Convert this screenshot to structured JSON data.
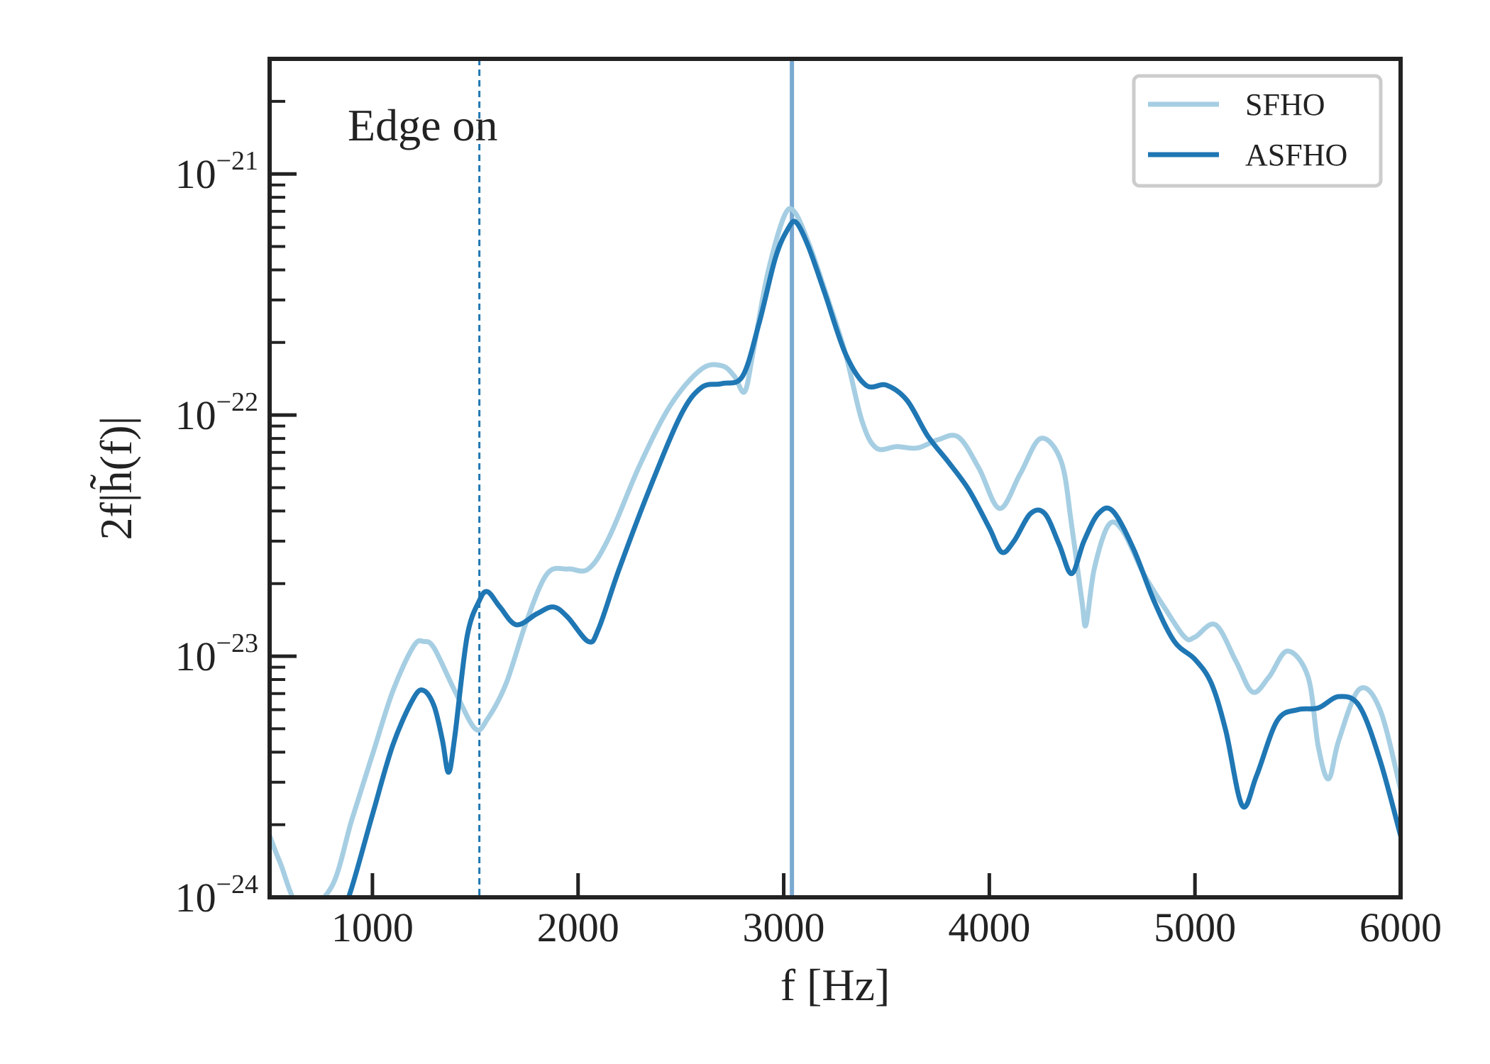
{
  "chart_data": {
    "type": "line",
    "annotation": "Edge on",
    "xlabel": "f [Hz]",
    "ylabel": "2f|h̃(f)|",
    "xlim": [
      500,
      6000
    ],
    "ylim": [
      1e-24,
      3e-21
    ],
    "yscale": "log",
    "xticks": [
      1000,
      2000,
      3000,
      4000,
      5000,
      6000
    ],
    "yticks": [
      {
        "value": 1e-24,
        "base": "10",
        "exp": "−24"
      },
      {
        "value": 1e-23,
        "base": "10",
        "exp": "−23"
      },
      {
        "value": 1e-22,
        "base": "10",
        "exp": "−22"
      },
      {
        "value": 1e-21,
        "base": "10",
        "exp": "−21"
      }
    ],
    "legend_position": "top-right",
    "vlines": [
      {
        "x": 1520,
        "style": "dashed",
        "color": "#1f77b4"
      },
      {
        "x": 3040,
        "style": "solid",
        "color": "#7aa9d1"
      }
    ],
    "series": [
      {
        "name": "SFHO",
        "color": "#a6cee3",
        "points": [
          [
            500,
            1.8e-24
          ],
          [
            550,
            1.4e-24
          ],
          [
            650,
            9e-25
          ],
          [
            800,
            1.1e-24
          ],
          [
            900,
            2.1e-24
          ],
          [
            1000,
            3.9e-24
          ],
          [
            1100,
            7.2e-24
          ],
          [
            1200,
            1.1e-23
          ],
          [
            1250,
            1.15e-23
          ],
          [
            1300,
            1.08e-23
          ],
          [
            1400,
            7.2e-24
          ],
          [
            1500,
            5e-24
          ],
          [
            1560,
            5.5e-24
          ],
          [
            1650,
            7.7e-24
          ],
          [
            1750,
            1.4e-23
          ],
          [
            1850,
            2.2e-23
          ],
          [
            1950,
            2.3e-23
          ],
          [
            2050,
            2.3e-23
          ],
          [
            2150,
            3.1e-23
          ],
          [
            2300,
            6.2e-23
          ],
          [
            2450,
            1.1e-22
          ],
          [
            2600,
            1.55e-22
          ],
          [
            2700,
            1.6e-22
          ],
          [
            2760,
            1.45e-22
          ],
          [
            2810,
            1.25e-22
          ],
          [
            2850,
            1.8e-22
          ],
          [
            2920,
            3.8e-22
          ],
          [
            3000,
            6.6e-22
          ],
          [
            3050,
            7e-22
          ],
          [
            3120,
            5.2e-22
          ],
          [
            3200,
            3.3e-22
          ],
          [
            3300,
            1.8e-22
          ],
          [
            3380,
            9.5e-23
          ],
          [
            3450,
            7.3e-23
          ],
          [
            3550,
            7.4e-23
          ],
          [
            3650,
            7.3e-23
          ],
          [
            3750,
            7.9e-23
          ],
          [
            3850,
            8.1e-23
          ],
          [
            3950,
            6e-23
          ],
          [
            4050,
            4.1e-23
          ],
          [
            4150,
            5.7e-23
          ],
          [
            4250,
            8e-23
          ],
          [
            4350,
            6.4e-23
          ],
          [
            4400,
            3.5e-23
          ],
          [
            4450,
            1.7e-23
          ],
          [
            4470,
            1.35e-23
          ],
          [
            4510,
            2.3e-23
          ],
          [
            4580,
            3.5e-23
          ],
          [
            4650,
            3.3e-23
          ],
          [
            4750,
            2.2e-23
          ],
          [
            4850,
            1.6e-23
          ],
          [
            4950,
            1.2e-23
          ],
          [
            5000,
            1.2e-23
          ],
          [
            5100,
            1.35e-23
          ],
          [
            5200,
            9.5e-24
          ],
          [
            5280,
            7.1e-24
          ],
          [
            5360,
            8.2e-24
          ],
          [
            5450,
            1.05e-23
          ],
          [
            5550,
            8.2e-24
          ],
          [
            5600,
            4.2e-24
          ],
          [
            5650,
            3.1e-24
          ],
          [
            5700,
            4.5e-24
          ],
          [
            5800,
            7.3e-24
          ],
          [
            5900,
            6e-24
          ],
          [
            6000,
            2.8e-24
          ]
        ]
      },
      {
        "name": "ASFHO",
        "color": "#1f77b4",
        "points": [
          [
            820,
            7e-25
          ],
          [
            900,
            1.1e-24
          ],
          [
            1000,
            2.2e-24
          ],
          [
            1100,
            4.3e-24
          ],
          [
            1200,
            6.7e-24
          ],
          [
            1250,
            7.2e-24
          ],
          [
            1300,
            6.2e-24
          ],
          [
            1340,
            4.5e-24
          ],
          [
            1370,
            3.3e-24
          ],
          [
            1400,
            4.6e-24
          ],
          [
            1460,
            1.2e-23
          ],
          [
            1520,
            1.7e-23
          ],
          [
            1560,
            1.85e-23
          ],
          [
            1620,
            1.6e-23
          ],
          [
            1700,
            1.35e-23
          ],
          [
            1800,
            1.5e-23
          ],
          [
            1880,
            1.6e-23
          ],
          [
            1950,
            1.45e-23
          ],
          [
            2050,
            1.15e-23
          ],
          [
            2100,
            1.3e-23
          ],
          [
            2200,
            2.3e-23
          ],
          [
            2350,
            5e-23
          ],
          [
            2500,
            1e-22
          ],
          [
            2600,
            1.3e-22
          ],
          [
            2700,
            1.35e-22
          ],
          [
            2800,
            1.45e-22
          ],
          [
            2880,
            2.4e-22
          ],
          [
            2960,
            4.5e-22
          ],
          [
            3020,
            5.9e-22
          ],
          [
            3060,
            6.3e-22
          ],
          [
            3120,
            5e-22
          ],
          [
            3200,
            3.2e-22
          ],
          [
            3300,
            1.8e-22
          ],
          [
            3400,
            1.33e-22
          ],
          [
            3500,
            1.33e-22
          ],
          [
            3600,
            1.15e-22
          ],
          [
            3700,
            8.2e-23
          ],
          [
            3800,
            6.4e-23
          ],
          [
            3900,
            4.9e-23
          ],
          [
            4000,
            3.4e-23
          ],
          [
            4060,
            2.7e-23
          ],
          [
            4120,
            3e-23
          ],
          [
            4200,
            3.9e-23
          ],
          [
            4270,
            3.9e-23
          ],
          [
            4340,
            2.9e-23
          ],
          [
            4400,
            2.2e-23
          ],
          [
            4460,
            3e-23
          ],
          [
            4530,
            3.9e-23
          ],
          [
            4600,
            4e-23
          ],
          [
            4700,
            2.8e-23
          ],
          [
            4800,
            1.7e-23
          ],
          [
            4900,
            1.15e-23
          ],
          [
            5000,
            9.7e-24
          ],
          [
            5080,
            7.7e-24
          ],
          [
            5150,
            4.9e-24
          ],
          [
            5230,
            2.4e-24
          ],
          [
            5300,
            3.2e-24
          ],
          [
            5400,
            5.4e-24
          ],
          [
            5500,
            6e-24
          ],
          [
            5600,
            6.1e-24
          ],
          [
            5700,
            6.8e-24
          ],
          [
            5800,
            6.2e-24
          ],
          [
            5900,
            3.7e-24
          ],
          [
            6000,
            1.8e-24
          ]
        ]
      }
    ]
  }
}
